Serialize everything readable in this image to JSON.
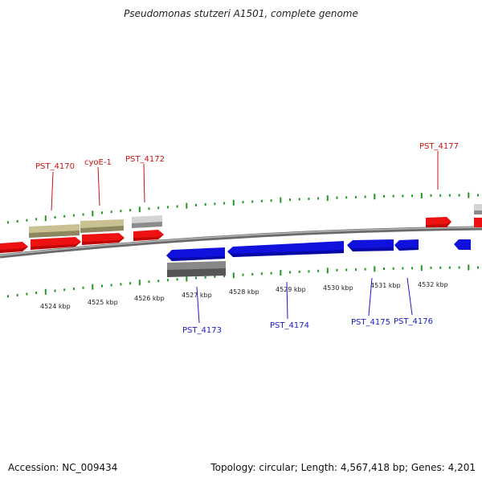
{
  "title": "Pseudomonas stutzeri A1501, complete genome",
  "footer": {
    "accession": "Accession: NC_009434",
    "summary": "Topology: circular; Length: 4,567,418 bp; Genes: 4,201"
  },
  "colors": {
    "forward_gene": "#ee1111",
    "reverse_gene": "#1111dd",
    "olive_feature": "#bdb585",
    "grey_feature": "#c4c4c4",
    "dark_grey_feature": "#707070",
    "backbone": "#8c8c8c",
    "tick": "#229922",
    "label_red": "#cc1111",
    "label_blue": "#1a1acc"
  },
  "ruler_labels": [
    "4524 kbp",
    "4525 kbp",
    "4526 kbp",
    "4527 kbp",
    "4528 kbp",
    "4529 kbp",
    "4530 kbp",
    "4531 kbp",
    "4532 kbp"
  ],
  "gene_labels": [
    {
      "name": "PST_4170",
      "strand": "forward"
    },
    {
      "name": "cyoE-1",
      "strand": "forward"
    },
    {
      "name": "PST_4172",
      "strand": "forward"
    },
    {
      "name": "PST_4177",
      "strand": "forward"
    },
    {
      "name": "PST_4173",
      "strand": "reverse"
    },
    {
      "name": "PST_4174",
      "strand": "reverse"
    },
    {
      "name": "PST_4175",
      "strand": "reverse"
    },
    {
      "name": "PST_4176",
      "strand": "reverse"
    }
  ]
}
